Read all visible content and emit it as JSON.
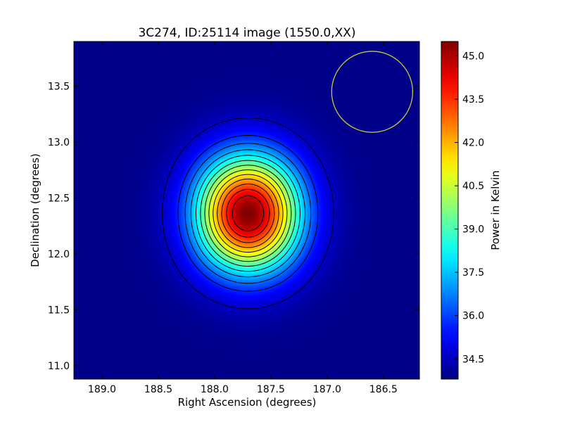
{
  "chart_data": {
    "type": "heatmap",
    "title": "3C274, ID:25114 image (1550.0,XX)",
    "xlabel": "Right Ascension (degrees)",
    "ylabel": "Declination (degrees)",
    "colorbar_label": "Power in Kelvin",
    "colormap": "jet",
    "x_direction": "decreasing",
    "xlim": [
      189.25,
      186.18
    ],
    "ylim": [
      10.88,
      13.9
    ],
    "xticks": [
      "189.0",
      "188.5",
      "188.0",
      "187.5",
      "187.0",
      "186.5"
    ],
    "yticks": [
      "11.0",
      "11.5",
      "12.0",
      "12.5",
      "13.0",
      "13.5"
    ],
    "color_range": [
      33.8,
      45.5
    ],
    "colorbar_ticks": [
      "34.5",
      "36.0",
      "37.5",
      "39.0",
      "40.5",
      "42.0",
      "43.5",
      "45.0"
    ],
    "source": {
      "center_ra": 187.7,
      "center_dec": 12.36,
      "peak_kelvin": 45.5,
      "background_kelvin": 33.9,
      "sigma_ra_deg": 0.33,
      "sigma_dec_deg": 0.37
    },
    "contour_levels_kelvin": [
      34.6,
      35.7,
      36.5,
      37.3,
      38.1,
      38.9,
      39.7,
      40.5,
      41.3,
      42.1,
      42.9,
      43.7,
      44.5
    ],
    "beam_circle": {
      "center_ra": 186.6,
      "center_dec": 13.45,
      "radius_deg": 0.36,
      "color": "#c8c832"
    },
    "grid": false,
    "legend": "none"
  }
}
